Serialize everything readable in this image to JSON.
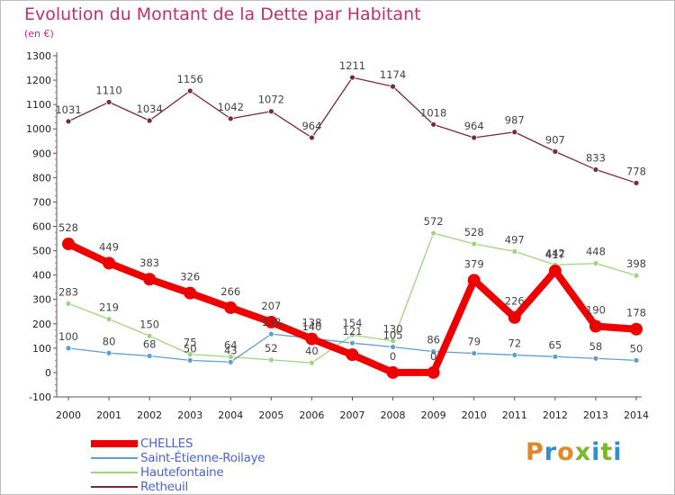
{
  "header": {
    "title": "Evolution du Montant de la Dette par Habitant",
    "subtitle": "(en €)"
  },
  "brand": {
    "text": "Proxiti",
    "letter_colors": [
      "#e0862a",
      "#2f8fd0",
      "#e08a2a",
      "#7cb82f",
      "#2f8fd0",
      "#7cb82f",
      "#2f8fd0"
    ]
  },
  "chart_data": {
    "type": "line",
    "title": "Evolution du Montant de la Dette par Habitant",
    "subtitle": "(en €)",
    "xlabel": "",
    "ylabel": "",
    "x": [
      "2000",
      "2001",
      "2002",
      "2003",
      "2004",
      "2005",
      "2006",
      "2007",
      "2008",
      "2009",
      "2010",
      "2011",
      "2012",
      "2013",
      "2014"
    ],
    "ylim": [
      -100,
      1300
    ],
    "yticks": [
      -100,
      0,
      100,
      200,
      300,
      400,
      500,
      600,
      700,
      800,
      900,
      1000,
      1100,
      1200,
      1300
    ],
    "grid": false,
    "legend_position": "bottom-left",
    "series": [
      {
        "name": "CHELLES",
        "color": "#ee0000",
        "width": 8,
        "marker": "circle",
        "values": [
          528,
          449,
          383,
          326,
          266,
          207,
          138,
          73,
          0,
          0,
          379,
          226,
          417,
          190,
          178
        ],
        "labels": [
          "528",
          "449",
          "383",
          "326",
          "266",
          "207",
          "138",
          "",
          "0",
          "0",
          "379",
          "226",
          "417",
          "190",
          "178"
        ]
      },
      {
        "name": "Saint-Étienne-Roilaye",
        "color": "#5f9fd0",
        "width": 1.3,
        "marker": "circle",
        "values": [
          100,
          80,
          68,
          50,
          43,
          158,
          140,
          121,
          105,
          86,
          79,
          72,
          65,
          58,
          50
        ],
        "labels": [
          "100",
          "80",
          "68",
          "50",
          "43",
          "158",
          "140",
          "121",
          "105",
          "86",
          "79",
          "72",
          "65",
          "58",
          "50"
        ]
      },
      {
        "name": "Hautefontaine",
        "color": "#9fd47f",
        "width": 1.3,
        "marker": "circle",
        "values": [
          283,
          219,
          150,
          75,
          64,
          52,
          40,
          154,
          130,
          572,
          528,
          497,
          442,
          448,
          398
        ],
        "labels": [
          "283",
          "219",
          "150",
          "75",
          "64",
          "52",
          "40",
          "154",
          "130",
          "572",
          "528",
          "497",
          "442",
          "448",
          "398"
        ]
      },
      {
        "name": "Retheuil",
        "color": "#7a2a30",
        "width": 1.3,
        "marker": "circle",
        "values": [
          1031,
          1110,
          1034,
          1156,
          1042,
          1072,
          964,
          1211,
          1174,
          1018,
          964,
          987,
          907,
          833,
          778
        ],
        "labels": [
          "1031",
          "1110",
          "1034",
          "1156",
          "1042",
          "1072",
          "964",
          "1211",
          "1174",
          "1018",
          "964",
          "987",
          "907",
          "833",
          "778"
        ]
      }
    ]
  }
}
